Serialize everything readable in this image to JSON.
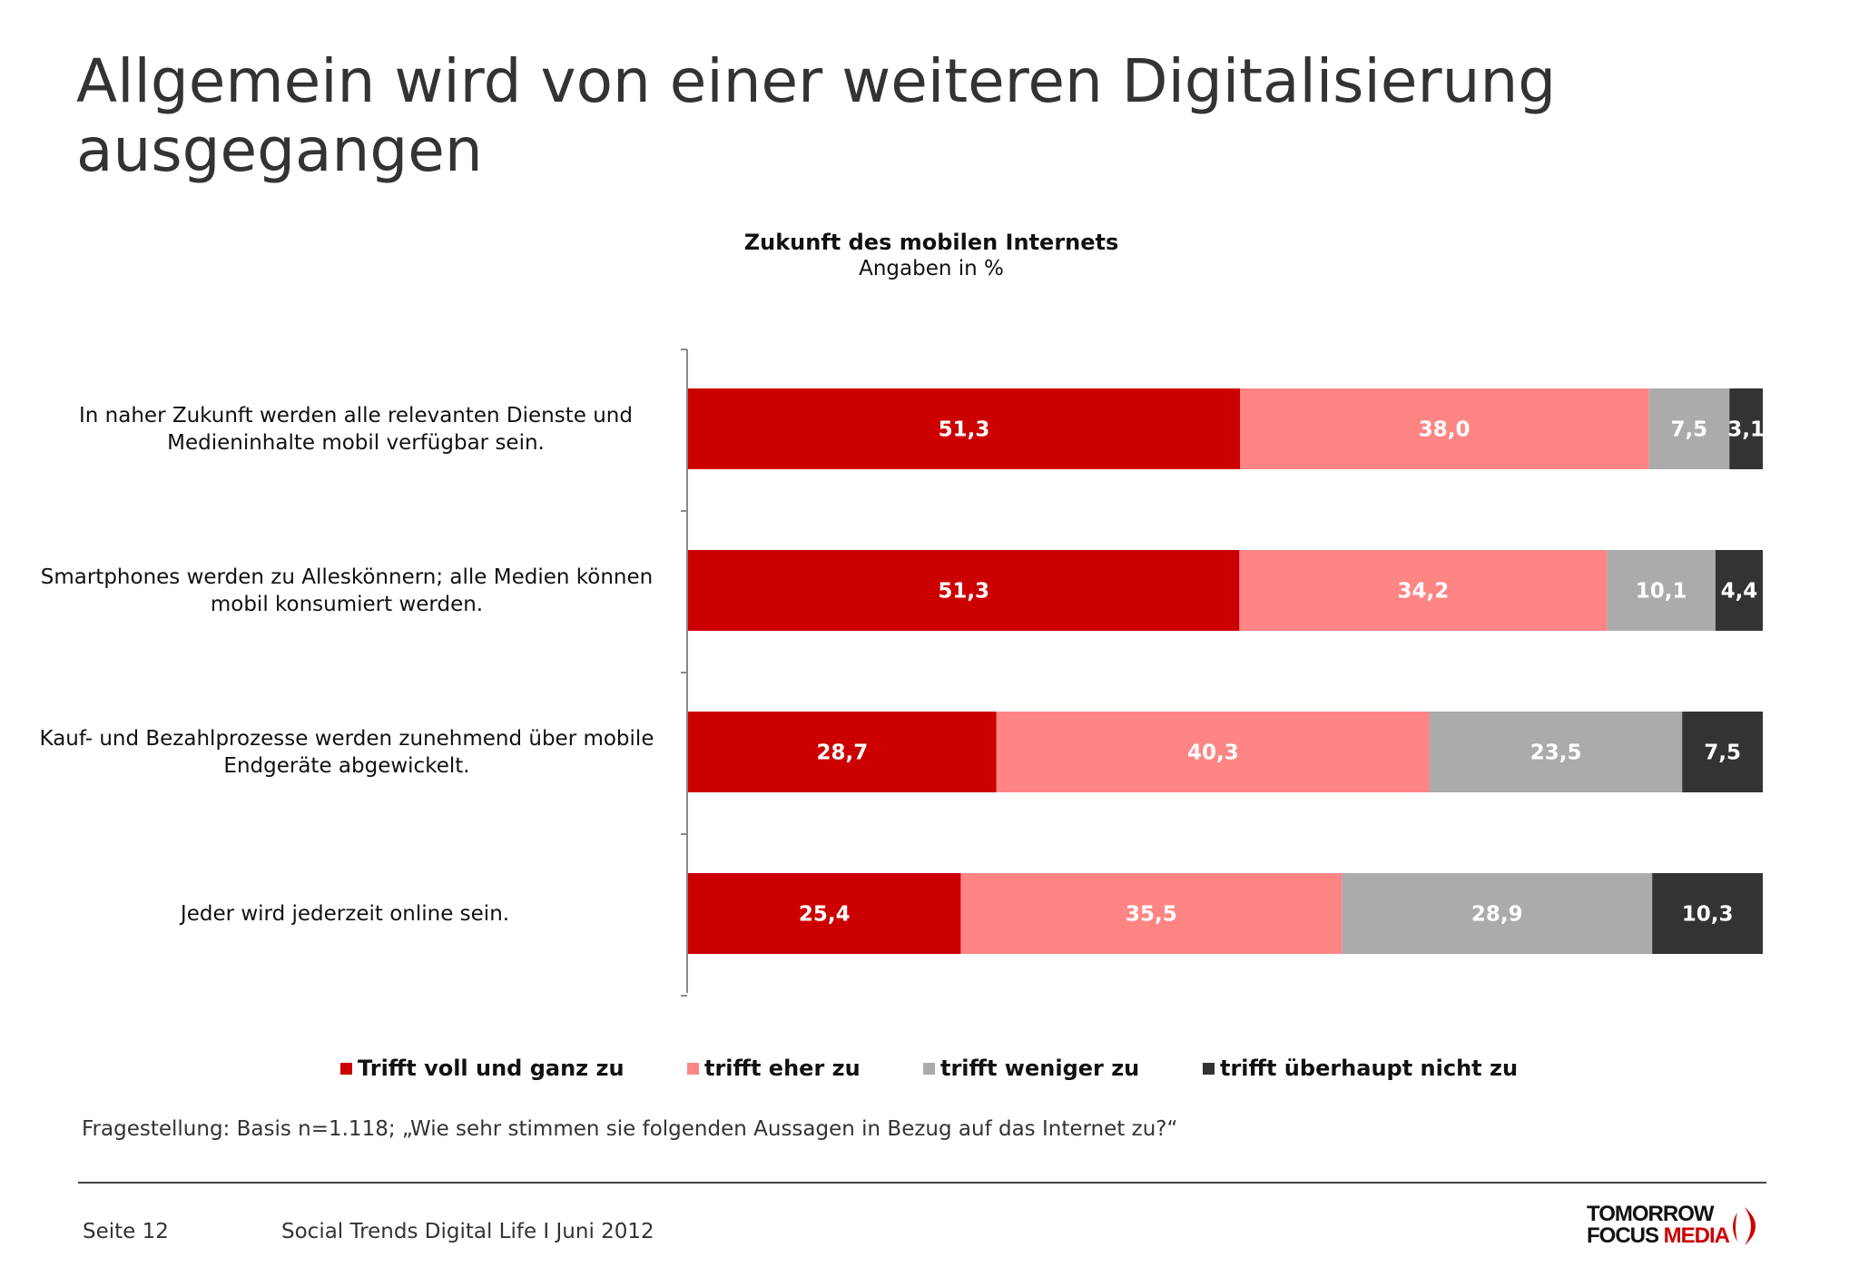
{
  "title": "Allgemein wird von einer weiteren Digitalisierung ausgegangen",
  "chart_data": {
    "type": "bar",
    "orientation": "horizontal-stacked",
    "title": "Zukunft des mobilen Internets",
    "subtitle": "Angaben in %",
    "categories": [
      "In naher Zukunft werden alle relevanten Dienste und Medieninhalte mobil verfügbar sein.",
      "Smartphones werden zu Alleskönnern; alle Medien können mobil konsumiert werden.",
      "Kauf- und Bezahlprozesse werden zunehmend über mobile Endgeräte abgewickelt.",
      "Jeder wird jederzeit online sein."
    ],
    "series": [
      {
        "name": "Trifft voll und ganz zu",
        "color": "#cc0000",
        "values": [
          51.3,
          51.3,
          28.7,
          25.4
        ],
        "labels": [
          "51,3",
          "51,3",
          "28,7",
          "25,4"
        ]
      },
      {
        "name": "trifft eher zu",
        "color": "#ff8585",
        "values": [
          38.0,
          34.2,
          40.3,
          35.5
        ],
        "labels": [
          "38,0",
          "34,2",
          "40,3",
          "35,5"
        ]
      },
      {
        "name": "trifft weniger zu",
        "color": "#ababab",
        "values": [
          7.5,
          10.1,
          23.5,
          28.9
        ],
        "labels": [
          "7,5",
          "10,1",
          "23,5",
          "28,9"
        ]
      },
      {
        "name": "trifft überhaupt nicht zu",
        "color": "#333333",
        "values": [
          3.1,
          4.4,
          7.5,
          10.3
        ],
        "labels": [
          "3,1",
          "4,4",
          "7,5",
          "10,3"
        ]
      }
    ],
    "legend": "bottom",
    "grid": false
  },
  "note": "Fragestellung: Basis n=1.118; „Wie sehr stimmen sie folgenden Aussagen in Bezug auf das Internet zu?“",
  "footer": {
    "page": "Seite  12",
    "report": "Social Trends Digital Life I Juni 2012",
    "logo_line1": "TOMORROW",
    "logo_line2a": "FOCUS",
    "logo_line2b": "MEDIA"
  }
}
